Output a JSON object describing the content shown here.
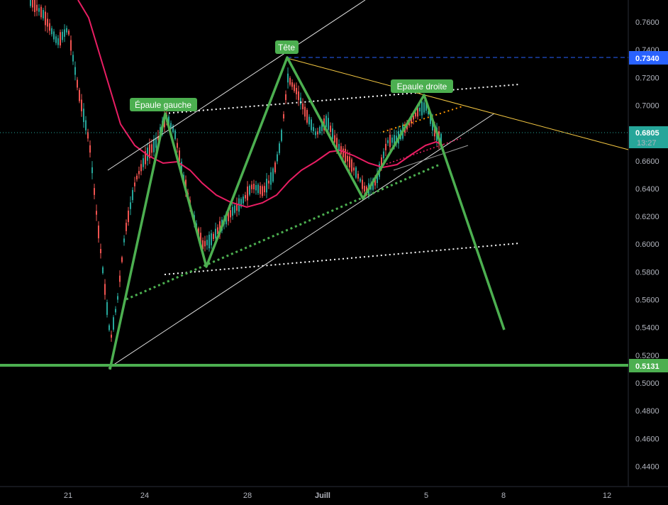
{
  "chart_data": {
    "type": "candlestick",
    "x_ticks": [
      "21",
      "24",
      "28",
      "Juill",
      "5",
      "8",
      "12"
    ],
    "y_ticks": [
      "0.7600",
      "0.7400",
      "0.7200",
      "0.7000",
      "0.6800",
      "0.6600",
      "0.6400",
      "0.6200",
      "0.6000",
      "0.5800",
      "0.5600",
      "0.5400",
      "0.5200",
      "0.5000",
      "0.4800",
      "0.4600",
      "0.4400"
    ],
    "ylim": [
      0.43,
      0.775
    ],
    "price_tags": [
      {
        "value": "0.7340",
        "color": "#2962ff"
      },
      {
        "value": "0.6805",
        "sub": "13:27",
        "color": "#26a69a"
      },
      {
        "value": "0.5131",
        "color": "#4caf50"
      }
    ],
    "annotations": [
      {
        "text": "Épaule gauche"
      },
      {
        "text": "Tête"
      },
      {
        "text": "Epaule droite"
      }
    ],
    "pattern": "head-and-shoulders",
    "colors": {
      "pattern": "#4caf50",
      "moving_average": "#e91e63",
      "trend_line": "#f5c842",
      "candle_up": "#26a69a",
      "candle_down": "#ef5350"
    }
  }
}
